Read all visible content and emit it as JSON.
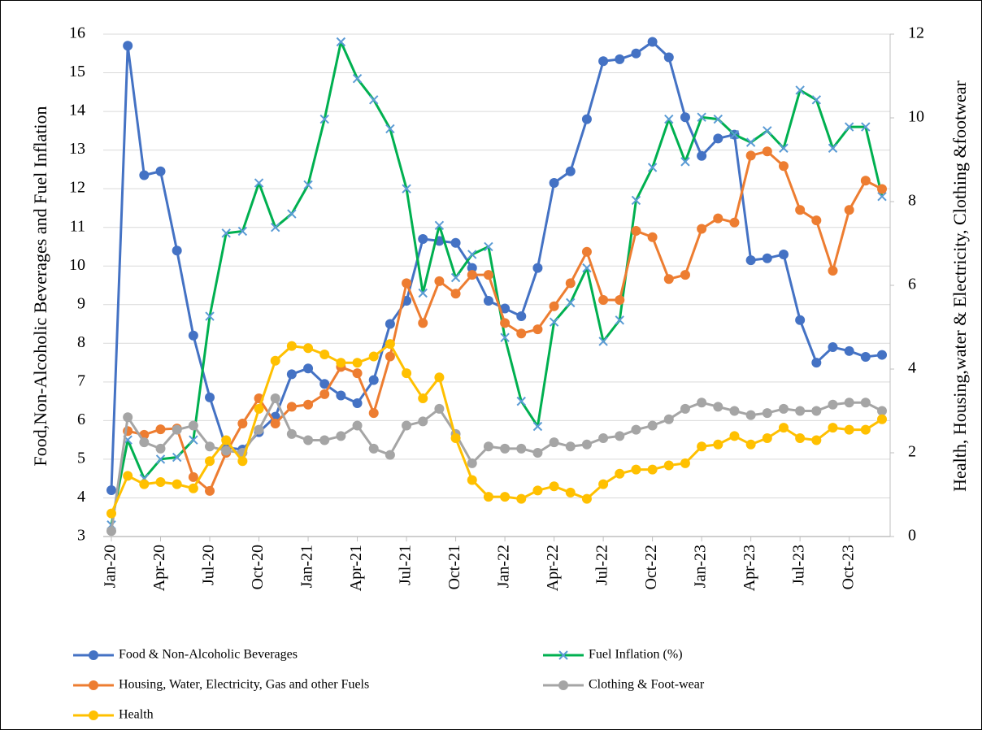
{
  "chart_data": {
    "type": "line",
    "y_label": "Food,Non-Alcoholic Beverages and Fuel Inflation",
    "y2_label": "Health, Housing,water & Electricity, Clothing &footwear",
    "categories": [
      "Jan-20",
      null,
      null,
      "Apr-20",
      null,
      null,
      "Jul-20",
      null,
      null,
      "Oct-20",
      null,
      null,
      "Jan-21",
      null,
      null,
      "Apr-21",
      null,
      null,
      "Jul-21",
      null,
      null,
      "Oct-21",
      null,
      null,
      "Jan-22",
      null,
      null,
      "Apr-22",
      null,
      null,
      "Jul-22",
      null,
      null,
      "Oct-22",
      null,
      null,
      "Jan-23",
      null,
      null,
      "Apr-23",
      null,
      null,
      "Jul-23",
      null,
      null,
      "Oct-23",
      null,
      null
    ],
    "ylim": [
      3,
      16
    ],
    "yticks": [
      3,
      4,
      5,
      6,
      7,
      8,
      9,
      10,
      11,
      12,
      13,
      14,
      15,
      16
    ],
    "y2lim": [
      0,
      12
    ],
    "y2ticks": [
      0,
      2,
      4,
      6,
      8,
      10,
      12
    ],
    "grid": true,
    "legend": "bottom",
    "series": [
      {
        "name": "Food & Non-Alcoholic Beverages",
        "color": "#4472c4",
        "marker": "circle",
        "axis": "y",
        "values": [
          4.2,
          15.7,
          12.35,
          12.45,
          10.4,
          8.2,
          6.6,
          5.3,
          5.25,
          5.7,
          6.1,
          7.2,
          7.35,
          6.95,
          6.65,
          6.45,
          7.05,
          8.5,
          9.1,
          10.7,
          10.65,
          10.6,
          9.95,
          9.1,
          8.9,
          8.7,
          9.95,
          12.15,
          12.45,
          13.8,
          15.3,
          15.35,
          15.5,
          15.8,
          15.4,
          13.85,
          12.85,
          13.3,
          13.4,
          10.15,
          10.2,
          10.3,
          8.6,
          7.5,
          7.9,
          7.8,
          7.65,
          7.7
        ]
      },
      {
        "name": "Fuel Inflation (%)",
        "color": "#00b050",
        "marker_color": "#5b9bd5",
        "marker": "x",
        "axis": "y",
        "values": [
          3.3,
          5.5,
          4.5,
          5.0,
          5.05,
          5.5,
          8.7,
          10.85,
          10.9,
          12.15,
          11.0,
          11.35,
          12.1,
          13.8,
          15.8,
          14.85,
          14.3,
          13.55,
          12.0,
          9.3,
          11.05,
          9.7,
          10.3,
          10.5,
          8.15,
          6.5,
          5.85,
          8.55,
          9.05,
          9.95,
          8.05,
          8.6,
          11.7,
          12.55,
          13.8,
          12.7,
          13.85,
          13.8,
          13.4,
          13.2,
          13.5,
          13.05,
          14.55,
          14.3,
          13.05,
          13.6,
          13.6,
          11.8
        ]
      },
      {
        "name": "Housing, Water, Electricity, Gas and other Fuels",
        "color": "#ed7d31",
        "marker": "circle",
        "axis": "y2",
        "values": [
          null,
          2.52,
          2.43,
          2.56,
          2.58,
          1.42,
          1.09,
          2.0,
          2.7,
          3.3,
          2.7,
          3.1,
          3.15,
          3.4,
          4.05,
          3.9,
          2.95,
          4.3,
          6.05,
          5.1,
          6.1,
          5.8,
          6.25,
          6.25,
          5.1,
          4.85,
          4.95,
          5.5,
          6.05,
          6.8,
          5.65,
          5.65,
          7.3,
          7.15,
          6.15,
          6.25,
          7.35,
          7.6,
          7.5,
          9.1,
          9.2,
          8.85,
          7.8,
          7.55,
          6.35,
          7.8,
          8.5,
          8.3
        ]
      },
      {
        "name": "Clothing & Foot-wear",
        "color": "#a5a5a5",
        "marker": "circle",
        "axis": "y2",
        "values": [
          0.13,
          2.85,
          2.25,
          2.1,
          2.55,
          2.65,
          2.15,
          2.05,
          2.0,
          2.55,
          3.3,
          2.45,
          2.3,
          2.3,
          2.4,
          2.65,
          2.1,
          1.95,
          2.65,
          2.75,
          3.05,
          2.45,
          1.75,
          2.15,
          2.1,
          2.1,
          2.0,
          2.25,
          2.15,
          2.2,
          2.35,
          2.4,
          2.55,
          2.65,
          2.8,
          3.05,
          3.2,
          3.1,
          3.0,
          2.9,
          2.95,
          3.05,
          3.0,
          3.0,
          3.15,
          3.2,
          3.2,
          3.0
        ]
      },
      {
        "name": "Health",
        "color": "#ffc000",
        "marker": "circle",
        "axis": "y2",
        "values": [
          0.55,
          1.45,
          1.25,
          1.3,
          1.25,
          1.15,
          1.8,
          2.3,
          1.8,
          3.05,
          4.2,
          4.55,
          4.5,
          4.35,
          4.15,
          4.15,
          4.3,
          4.6,
          3.9,
          3.3,
          3.8,
          2.35,
          1.35,
          0.95,
          0.95,
          0.9,
          1.1,
          1.2,
          1.05,
          0.9,
          1.25,
          1.5,
          1.6,
          1.6,
          1.7,
          1.75,
          2.15,
          2.2,
          2.4,
          2.2,
          2.35,
          2.6,
          2.35,
          2.3,
          2.6,
          2.55,
          2.55,
          2.8
        ]
      }
    ]
  }
}
